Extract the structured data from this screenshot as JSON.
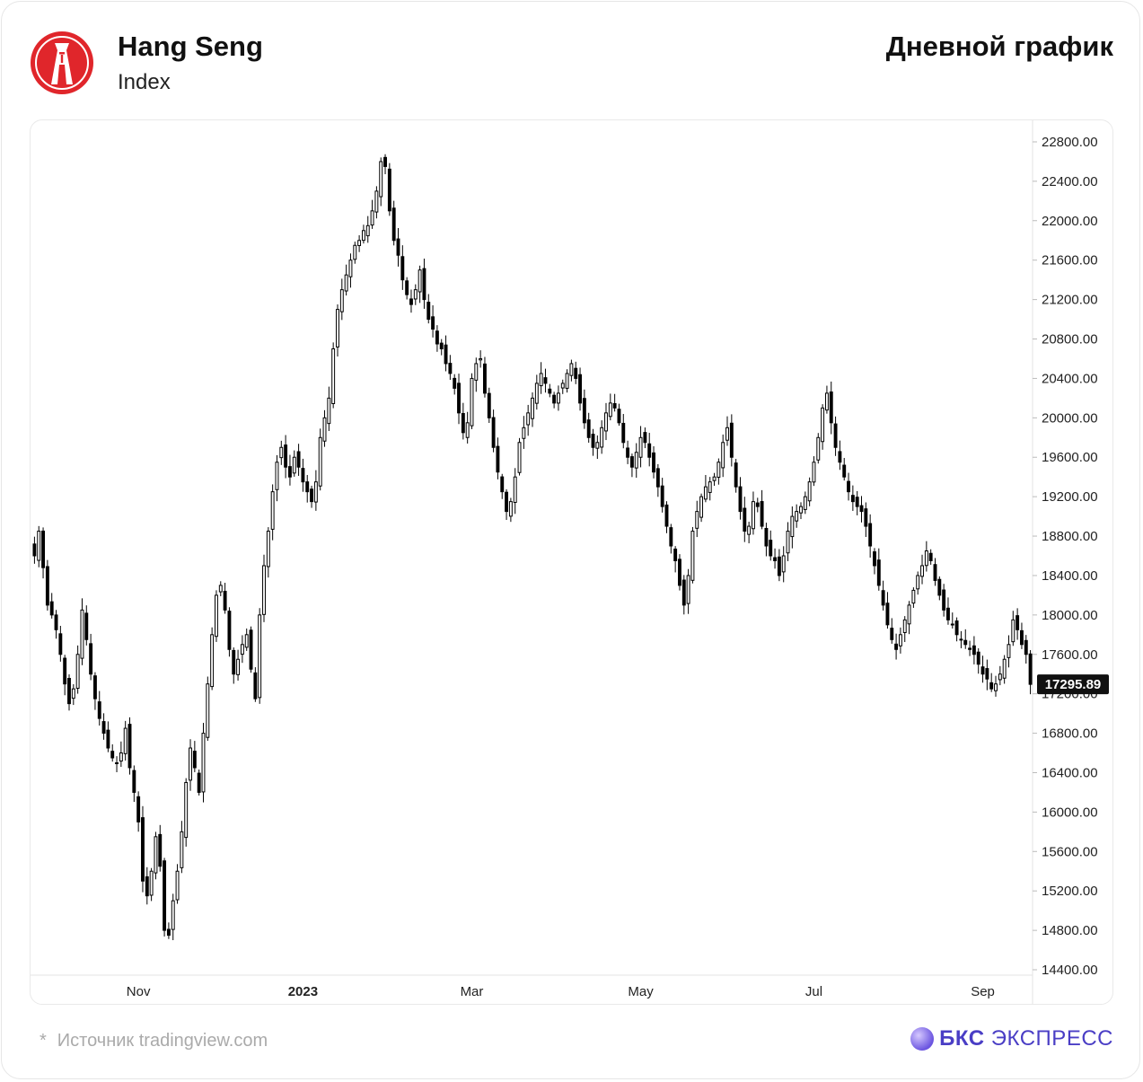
{
  "header": {
    "title": "Hang Seng",
    "subtitle": "Index",
    "right_title": "Дневной график"
  },
  "colors": {
    "logo_red": "#e0262b",
    "candle": "#000000",
    "brand": "#4a3ec5"
  },
  "icons": {
    "logo": "hang-seng-logo-icon",
    "brand": "bcs-sphere-icon"
  },
  "footer": {
    "source_star": "*",
    "source_text": "Источник tradingview.com",
    "brand_bold": "БКС",
    "brand_regular": "ЭКСПРЕСС"
  },
  "chart_data": {
    "type": "candlestick",
    "yticks": [
      "22800.00",
      "22400.00",
      "22000.00",
      "21600.00",
      "21200.00",
      "20800.00",
      "20400.00",
      "20000.00",
      "19600.00",
      "19200.00",
      "18800.00",
      "18400.00",
      "18000.00",
      "17600.00",
      "17200.00",
      "16800.00",
      "16400.00",
      "16000.00",
      "15600.00",
      "15200.00",
      "14800.00",
      "14400.00"
    ],
    "ylim": [
      14400,
      22800
    ],
    "xticks": [
      {
        "label": "Nov",
        "bold": false,
        "index": 24
      },
      {
        "label": "2023",
        "bold": true,
        "index": 62
      },
      {
        "label": "Mar",
        "bold": false,
        "index": 101
      },
      {
        "label": "May",
        "bold": false,
        "index": 140
      },
      {
        "label": "Jul",
        "bold": false,
        "index": 180
      },
      {
        "label": "Sep",
        "bold": false,
        "index": 219
      }
    ],
    "last_price": "17295.89",
    "series_close": [
      18600,
      18850,
      18480,
      18100,
      18000,
      17850,
      17600,
      17300,
      17100,
      17250,
      17600,
      18050,
      17750,
      17400,
      17150,
      16950,
      16800,
      16650,
      16550,
      16500,
      16600,
      16850,
      16450,
      16200,
      15900,
      15300,
      15150,
      15400,
      15750,
      15450,
      14800,
      14750,
      15100,
      15400,
      15800,
      16300,
      16650,
      16450,
      16200,
      16800,
      17300,
      17800,
      18200,
      18300,
      18050,
      17650,
      17400,
      17550,
      17700,
      17800,
      17450,
      17150,
      18000,
      18500,
      18850,
      19250,
      19550,
      19700,
      19500,
      19400,
      19600,
      19500,
      19350,
      19250,
      19150,
      19350,
      19800,
      20000,
      20200,
      20700,
      21100,
      21300,
      21450,
      21600,
      21750,
      21800,
      21900,
      21950,
      22100,
      22300,
      22600,
      22550,
      22100,
      21800,
      21650,
      21400,
      21250,
      21150,
      21300,
      21500,
      21200,
      21000,
      20900,
      20750,
      20700,
      20550,
      20450,
      20300,
      20050,
      19850,
      19950,
      20400,
      20550,
      20600,
      20250,
      20000,
      19700,
      19450,
      19250,
      19050,
      19150,
      19400,
      19750,
      19900,
      20050,
      20200,
      20350,
      20450,
      20350,
      20250,
      20150,
      20250,
      20350,
      20450,
      20550,
      20400,
      20150,
      19950,
      19800,
      19700,
      19750,
      19900,
      20050,
      20150,
      20100,
      19950,
      19750,
      19600,
      19500,
      19650,
      19800,
      19750,
      19600,
      19450,
      19300,
      19100,
      18900,
      18700,
      18550,
      18300,
      18100,
      18400,
      18850,
      19050,
      19200,
      19300,
      19350,
      19400,
      19550,
      19750,
      19900,
      19600,
      19300,
      19050,
      18850,
      18900,
      19150,
      19100,
      18900,
      18700,
      18600,
      18550,
      18400,
      18600,
      18850,
      19000,
      19050,
      19100,
      19200,
      19350,
      19550,
      19800,
      20100,
      20250,
      19950,
      19700,
      19550,
      19400,
      19250,
      19150,
      19100,
      19050,
      18900,
      18700,
      18500,
      18300,
      18100,
      17900,
      17750,
      17650,
      17800,
      17950,
      18100,
      18250,
      18400,
      18500,
      18650,
      18550,
      18350,
      18200,
      18050,
      17950,
      17900,
      17800,
      17750,
      17700,
      17650,
      17600,
      17500,
      17400,
      17350,
      17250,
      17300,
      17400,
      17550,
      17700,
      17950,
      17850,
      17700,
      17600,
      17295.89
    ]
  }
}
